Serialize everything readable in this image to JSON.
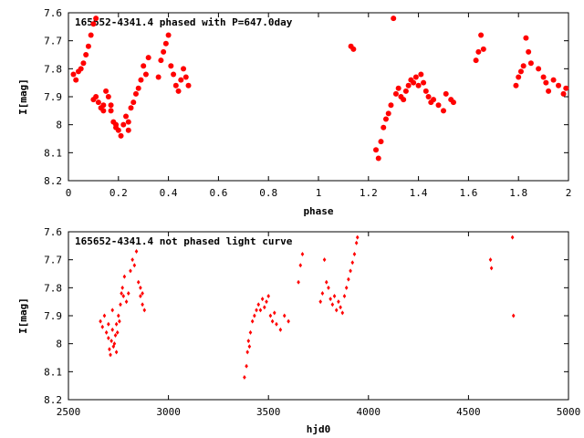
{
  "colors": {
    "points": "#ff0000",
    "axes": "#000000",
    "background": "#ffffff"
  },
  "chart_data": [
    {
      "type": "scatter",
      "title": "165652-4341.4 phased with P=647.0day",
      "xlabel": "phase",
      "ylabel": "I[mag]",
      "xlim": [
        0,
        2
      ],
      "ylim": [
        8.2,
        7.6
      ],
      "y_inverted": true,
      "grid": false,
      "marker": "filled-circle",
      "xticks": [
        "0",
        "0.2",
        "0.4",
        "0.6",
        "0.8",
        "1",
        "1.2",
        "1.4",
        "1.6",
        "1.8",
        "2"
      ],
      "yticks": [
        "7.6",
        "7.7",
        "7.8",
        "7.9",
        "8",
        "8.1",
        "8.2"
      ],
      "series": [
        {
          "points": [
            [
              0.02,
              7.82
            ],
            [
              0.03,
              7.84
            ],
            [
              0.04,
              7.81
            ],
            [
              0.05,
              7.8
            ],
            [
              0.06,
              7.78
            ],
            [
              0.07,
              7.75
            ],
            [
              0.08,
              7.72
            ],
            [
              0.09,
              7.68
            ],
            [
              0.1,
              7.64
            ],
            [
              0.11,
              7.62
            ],
            [
              0.1,
              7.91
            ],
            [
              0.11,
              7.9
            ],
            [
              0.12,
              7.92
            ],
            [
              0.13,
              7.94
            ],
            [
              0.14,
              7.93
            ],
            [
              0.15,
              7.88
            ],
            [
              0.16,
              7.9
            ],
            [
              0.17,
              7.95
            ],
            [
              0.18,
              7.99
            ],
            [
              0.19,
              8.01
            ],
            [
              0.2,
              8.02
            ],
            [
              0.21,
              8.04
            ],
            [
              0.22,
              8.0
            ],
            [
              0.23,
              7.97
            ],
            [
              0.24,
              7.99
            ],
            [
              0.25,
              7.94
            ],
            [
              0.26,
              7.92
            ],
            [
              0.27,
              7.89
            ],
            [
              0.28,
              7.87
            ],
            [
              0.29,
              7.84
            ],
            [
              0.3,
              7.79
            ],
            [
              0.31,
              7.82
            ],
            [
              0.32,
              7.76
            ],
            [
              0.36,
              7.83
            ],
            [
              0.37,
              7.77
            ],
            [
              0.38,
              7.74
            ],
            [
              0.39,
              7.71
            ],
            [
              0.4,
              7.68
            ],
            [
              0.41,
              7.79
            ],
            [
              0.42,
              7.82
            ],
            [
              0.43,
              7.86
            ],
            [
              0.44,
              7.88
            ],
            [
              0.45,
              7.84
            ],
            [
              0.46,
              7.8
            ],
            [
              0.47,
              7.83
            ],
            [
              0.48,
              7.86
            ],
            [
              0.14,
              7.95
            ],
            [
              0.17,
              7.93
            ],
            [
              0.19,
              8.0
            ],
            [
              0.24,
              8.02
            ],
            [
              1.13,
              7.72
            ],
            [
              1.14,
              7.73
            ],
            [
              1.23,
              8.09
            ],
            [
              1.24,
              8.12
            ],
            [
              1.25,
              8.06
            ],
            [
              1.26,
              8.01
            ],
            [
              1.27,
              7.98
            ],
            [
              1.28,
              7.96
            ],
            [
              1.29,
              7.93
            ],
            [
              1.3,
              7.62
            ],
            [
              1.31,
              7.89
            ],
            [
              1.32,
              7.87
            ],
            [
              1.33,
              7.9
            ],
            [
              1.34,
              7.91
            ],
            [
              1.35,
              7.88
            ],
            [
              1.36,
              7.86
            ],
            [
              1.37,
              7.84
            ],
            [
              1.38,
              7.85
            ],
            [
              1.39,
              7.83
            ],
            [
              1.4,
              7.86
            ],
            [
              1.41,
              7.82
            ],
            [
              1.42,
              7.85
            ],
            [
              1.43,
              7.88
            ],
            [
              1.44,
              7.9
            ],
            [
              1.45,
              7.92
            ],
            [
              1.46,
              7.91
            ],
            [
              1.48,
              7.93
            ],
            [
              1.5,
              7.95
            ],
            [
              1.51,
              7.89
            ],
            [
              1.53,
              7.91
            ],
            [
              1.54,
              7.92
            ],
            [
              1.63,
              7.77
            ],
            [
              1.64,
              7.74
            ],
            [
              1.65,
              7.68
            ],
            [
              1.66,
              7.73
            ],
            [
              1.79,
              7.86
            ],
            [
              1.8,
              7.83
            ],
            [
              1.81,
              7.81
            ],
            [
              1.82,
              7.79
            ],
            [
              1.83,
              7.69
            ],
            [
              1.84,
              7.74
            ],
            [
              1.85,
              7.78
            ],
            [
              1.88,
              7.8
            ],
            [
              1.9,
              7.83
            ],
            [
              1.91,
              7.85
            ],
            [
              1.92,
              7.88
            ],
            [
              1.94,
              7.84
            ],
            [
              1.96,
              7.86
            ],
            [
              1.98,
              7.89
            ],
            [
              1.99,
              7.87
            ]
          ]
        }
      ]
    },
    {
      "type": "scatter",
      "title": "165652-4341.4 not phased light curve",
      "xlabel": "hjd0",
      "ylabel": "I[mag]",
      "xlim": [
        2500,
        5000
      ],
      "ylim": [
        8.2,
        7.6
      ],
      "y_inverted": true,
      "grid": false,
      "marker": "small-diamond",
      "xticks": [
        "2500",
        "3000",
        "3500",
        "4000",
        "4500",
        "5000"
      ],
      "yticks": [
        "7.6",
        "7.7",
        "7.8",
        "7.9",
        "8",
        "8.1",
        "8.2"
      ],
      "series": [
        {
          "points": [
            [
              2660,
              7.92
            ],
            [
              2670,
              7.94
            ],
            [
              2680,
              7.9
            ],
            [
              2690,
              7.96
            ],
            [
              2700,
              7.98
            ],
            [
              2705,
              8.02
            ],
            [
              2710,
              8.04
            ],
            [
              2715,
              7.99
            ],
            [
              2720,
              7.95
            ],
            [
              2725,
              8.01
            ],
            [
              2730,
              8.0
            ],
            [
              2735,
              7.97
            ],
            [
              2740,
              7.93
            ],
            [
              2745,
              7.96
            ],
            [
              2750,
              7.9
            ],
            [
              2755,
              7.92
            ],
            [
              2760,
              7.86
            ],
            [
              2765,
              7.82
            ],
            [
              2770,
              7.8
            ],
            [
              2775,
              7.83
            ],
            [
              2780,
              7.76
            ],
            [
              2790,
              7.85
            ],
            [
              2800,
              7.82
            ],
            [
              2810,
              7.74
            ],
            [
              2820,
              7.7
            ],
            [
              2830,
              7.72
            ],
            [
              2840,
              7.67
            ],
            [
              2850,
              7.78
            ],
            [
              2860,
              7.83
            ],
            [
              2870,
              7.86
            ],
            [
              2880,
              7.88
            ],
            [
              2720,
              7.88
            ],
            [
              2700,
              7.93
            ],
            [
              2740,
              8.03
            ],
            [
              2860,
              7.8
            ],
            [
              2870,
              7.82
            ],
            [
              3380,
              8.12
            ],
            [
              3390,
              8.08
            ],
            [
              3395,
              8.03
            ],
            [
              3400,
              7.99
            ],
            [
              3405,
              8.01
            ],
            [
              3410,
              7.96
            ],
            [
              3420,
              7.92
            ],
            [
              3430,
              7.9
            ],
            [
              3440,
              7.88
            ],
            [
              3450,
              7.86
            ],
            [
              3460,
              7.88
            ],
            [
              3470,
              7.84
            ],
            [
              3480,
              7.87
            ],
            [
              3490,
              7.85
            ],
            [
              3500,
              7.83
            ],
            [
              3510,
              7.9
            ],
            [
              3520,
              7.92
            ],
            [
              3530,
              7.89
            ],
            [
              3540,
              7.93
            ],
            [
              3560,
              7.95
            ],
            [
              3580,
              7.9
            ],
            [
              3600,
              7.92
            ],
            [
              3650,
              7.78
            ],
            [
              3660,
              7.72
            ],
            [
              3670,
              7.68
            ],
            [
              3760,
              7.85
            ],
            [
              3770,
              7.82
            ],
            [
              3780,
              7.7
            ],
            [
              3790,
              7.78
            ],
            [
              3800,
              7.8
            ],
            [
              3810,
              7.84
            ],
            [
              3820,
              7.86
            ],
            [
              3830,
              7.83
            ],
            [
              3840,
              7.88
            ],
            [
              3850,
              7.85
            ],
            [
              3860,
              7.87
            ],
            [
              3870,
              7.89
            ],
            [
              3880,
              7.83
            ],
            [
              3890,
              7.8
            ],
            [
              3900,
              7.77
            ],
            [
              3910,
              7.74
            ],
            [
              3920,
              7.71
            ],
            [
              3930,
              7.68
            ],
            [
              3940,
              7.64
            ],
            [
              3945,
              7.62
            ],
            [
              4610,
              7.7
            ],
            [
              4615,
              7.73
            ],
            [
              4720,
              7.62
            ],
            [
              4725,
              7.9
            ]
          ]
        }
      ]
    }
  ]
}
